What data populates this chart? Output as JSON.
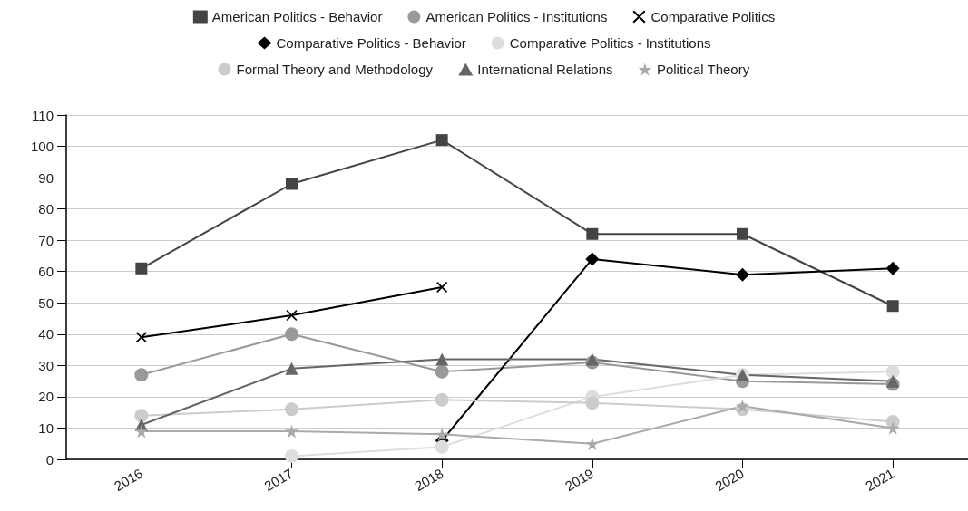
{
  "chart_data": {
    "type": "line",
    "categories": [
      "2016",
      "2017",
      "2018",
      "2019",
      "2020",
      "2021"
    ],
    "ylim": [
      0,
      110
    ],
    "yticks": [
      0,
      10,
      20,
      30,
      40,
      50,
      60,
      70,
      80,
      90,
      100,
      110
    ],
    "grid": "y",
    "legend": "top",
    "line_style": "solid",
    "series": [
      {
        "name": "American Politics - Behavior",
        "color": "#444444",
        "marker": "square",
        "values": [
          61,
          88,
          102,
          72,
          72,
          49
        ]
      },
      {
        "name": "American Politics - Institutions",
        "color": "#999999",
        "marker": "circle",
        "values": [
          27,
          40,
          28,
          31,
          25,
          24
        ]
      },
      {
        "name": "Comparative Politics",
        "color": "#000000",
        "marker": "cross",
        "values": [
          39,
          46,
          55,
          null,
          null,
          null
        ]
      },
      {
        "name": "Comparative Politics - Behavior",
        "color": "#000000",
        "marker": "diamond",
        "values": [
          null,
          null,
          6,
          64,
          59,
          61
        ]
      },
      {
        "name": "Comparative Politics - Institutions",
        "color": "#dddddd",
        "marker": "circle",
        "values": [
          null,
          1,
          4,
          20,
          27,
          28
        ]
      },
      {
        "name": "Formal Theory and Methodology",
        "color": "#cccccc",
        "marker": "circle",
        "values": [
          14,
          16,
          19,
          18,
          16,
          12
        ]
      },
      {
        "name": "International Relations",
        "color": "#666666",
        "marker": "triangle",
        "values": [
          11,
          29,
          32,
          32,
          27,
          25
        ]
      },
      {
        "name": "Political Theory",
        "color": "#aaaaaa",
        "marker": "star",
        "values": [
          9,
          9,
          8,
          5,
          17,
          10
        ]
      }
    ]
  }
}
